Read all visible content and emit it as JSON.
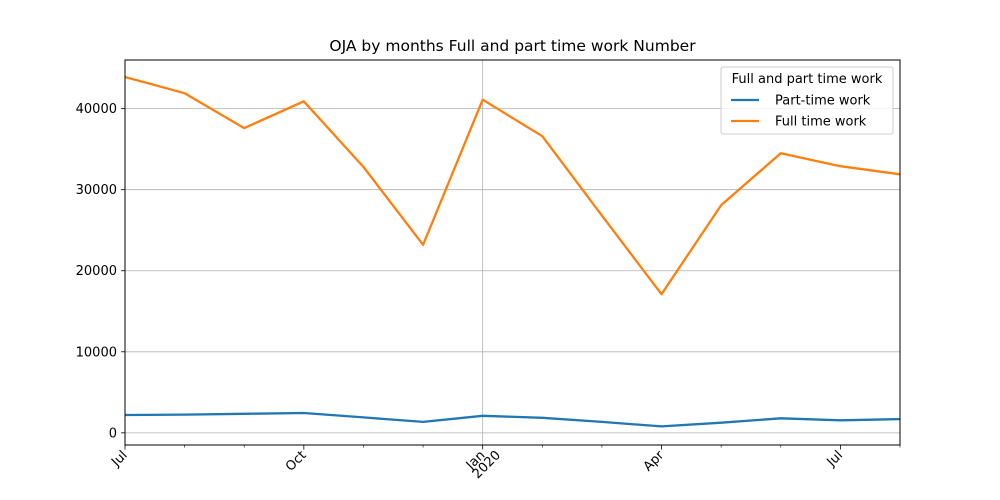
{
  "chart_data": {
    "type": "line",
    "title": "OJA by months Full and part time work Number",
    "xlabel": "",
    "ylabel": "",
    "x": [
      "2019-07",
      "2019-08",
      "2019-09",
      "2019-10",
      "2019-11",
      "2019-12",
      "2020-01",
      "2020-02",
      "2020-03",
      "2020-04",
      "2020-05",
      "2020-06",
      "2020-07",
      "2020-08"
    ],
    "xlim": [
      "2019-07",
      "2020-08"
    ],
    "ylim": [
      -1500,
      46000
    ],
    "y_ticks": [
      0,
      10000,
      20000,
      30000,
      40000
    ],
    "y_tick_labels": [
      "0",
      "10000",
      "20000",
      "30000",
      "40000"
    ],
    "x_major_ticks": [
      {
        "x": "2019-07",
        "label": "Jul",
        "sublabel": ""
      },
      {
        "x": "2019-10",
        "label": "Oct",
        "sublabel": ""
      },
      {
        "x": "2020-01",
        "label": "Jan",
        "sublabel": "2020"
      },
      {
        "x": "2020-04",
        "label": "Apr",
        "sublabel": ""
      },
      {
        "x": "2020-07",
        "label": "Jul",
        "sublabel": ""
      }
    ],
    "grid": true,
    "grid_vertical_at": [
      "2020-01"
    ],
    "legend": {
      "title": "Full and part time work",
      "placement": "top-right"
    },
    "series": [
      {
        "name": "Part-time work",
        "color": "#1f77b4",
        "values": [
          2200,
          2250,
          2350,
          2450,
          1900,
          1350,
          2100,
          1850,
          1350,
          800,
          1250,
          1800,
          1550,
          1700
        ]
      },
      {
        "name": "Full time work",
        "color": "#ff7f0e",
        "values": [
          43900,
          41900,
          37600,
          40900,
          32800,
          23200,
          41100,
          36600,
          26800,
          17100,
          28100,
          34500,
          32900,
          31900
        ]
      }
    ]
  }
}
